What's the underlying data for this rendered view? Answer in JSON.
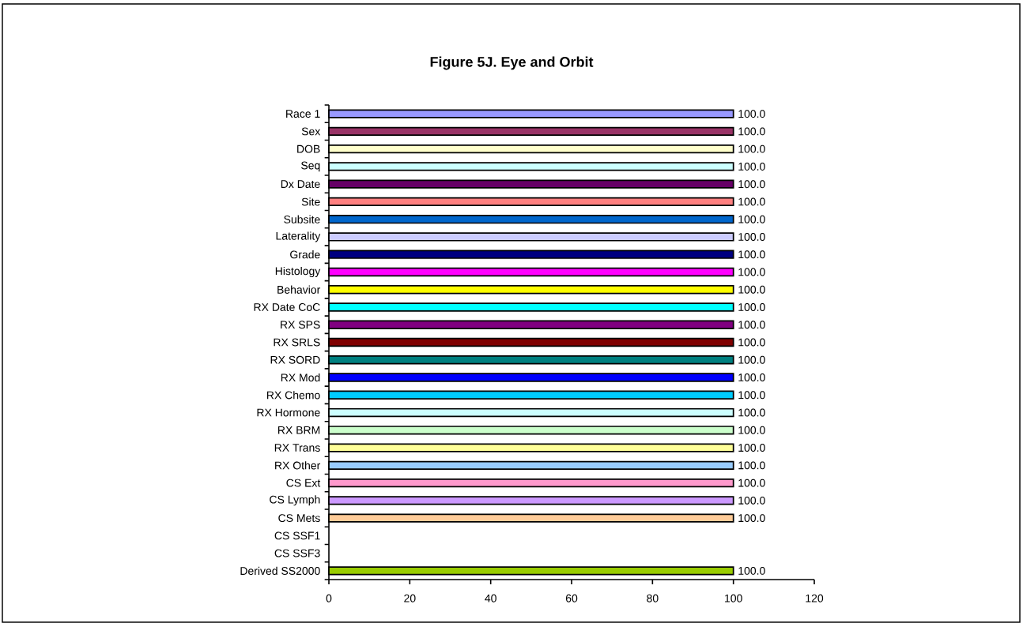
{
  "chart_data": {
    "type": "bar",
    "orientation": "horizontal",
    "title": "Figure 5J.  Eye and Orbit",
    "categories": [
      "Race 1",
      "Sex",
      "DOB",
      "Seq",
      "Dx Date",
      "Site",
      "Subsite",
      "Laterality",
      "Grade",
      "Histology",
      "Behavior",
      "RX Date CoC",
      "RX SPS",
      "RX SRLS",
      "RX SORD",
      "RX Mod",
      "RX Chemo",
      "RX Hormone",
      "RX BRM",
      "RX Trans",
      "RX Other",
      "CS Ext",
      "CS Lymph",
      "CS Mets",
      "CS SSF1",
      "CS SSF3",
      "Derived SS2000"
    ],
    "values": [
      100,
      100,
      100,
      100,
      100,
      100,
      100,
      100,
      100,
      100,
      100,
      100,
      100,
      100,
      100,
      100,
      100,
      100,
      100,
      100,
      100,
      100,
      100,
      100,
      null,
      null,
      100
    ],
    "colors": [
      "#9999ff",
      "#993366",
      "#ffffcc",
      "#ccffff",
      "#660066",
      "#ff8080",
      "#0066cc",
      "#ccccff",
      "#000080",
      "#ff00ff",
      "#ffff00",
      "#00ffff",
      "#800080",
      "#800000",
      "#008080",
      "#0000ff",
      "#00ccff",
      "#ccffff",
      "#ccffcc",
      "#ffff99",
      "#99ccff",
      "#ff99cc",
      "#cc99ff",
      "#ffcc99",
      null,
      null,
      "#99cc00"
    ],
    "value_labels": [
      "100.0",
      "100.0",
      "100.0",
      "100.0",
      "100.0",
      "100.0",
      "100.0",
      "100.0",
      "100.0",
      "100.0",
      "100.0",
      "100.0",
      "100.0",
      "100.0",
      "100.0",
      "100.0",
      "100.0",
      "100.0",
      "100.0",
      "100.0",
      "100.0",
      "100.0",
      "100.0",
      "100.0",
      null,
      null,
      "100.0"
    ],
    "xlim": [
      0,
      120
    ],
    "xticks": [
      0,
      20,
      40,
      60,
      80,
      100,
      120
    ]
  }
}
